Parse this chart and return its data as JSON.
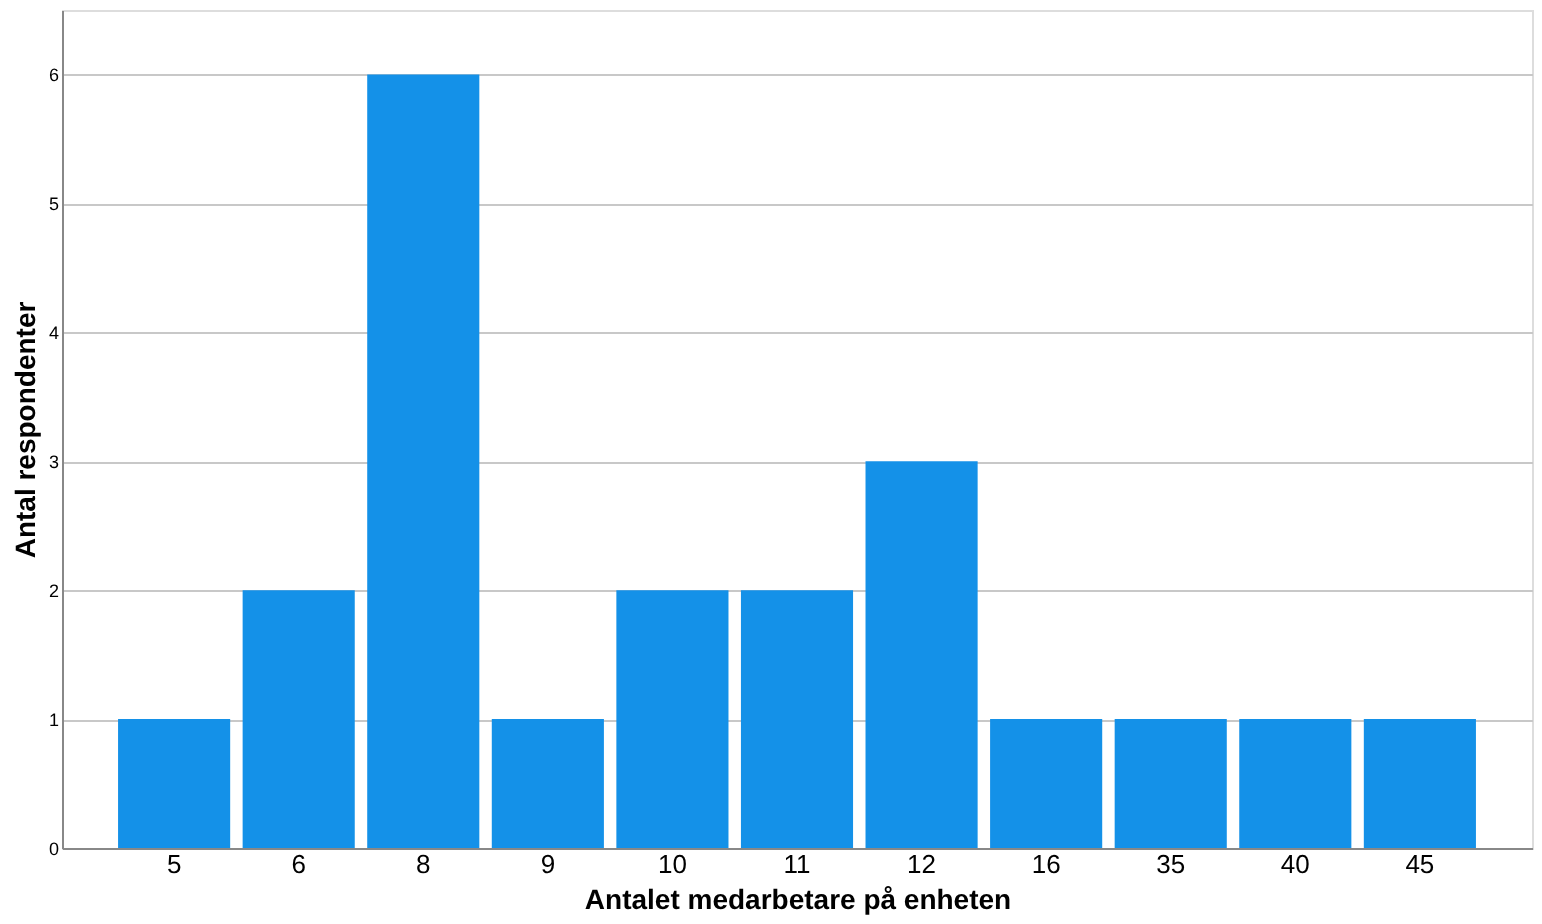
{
  "chart_data": {
    "type": "bar",
    "xlabel": "Antalet medarbetare på enheten",
    "ylabel": "Antal respondenter",
    "categories": [
      "5",
      "6",
      "8",
      "9",
      "10",
      "11",
      "12",
      "16",
      "35",
      "40",
      "45"
    ],
    "values": [
      1,
      2,
      6,
      1,
      2,
      2,
      3,
      1,
      1,
      1,
      1
    ],
    "color": "#1491e8",
    "ylim": [
      0,
      6.5
    ],
    "yticks": [
      0,
      1,
      2,
      3,
      4,
      5,
      6
    ],
    "grid": "y"
  }
}
